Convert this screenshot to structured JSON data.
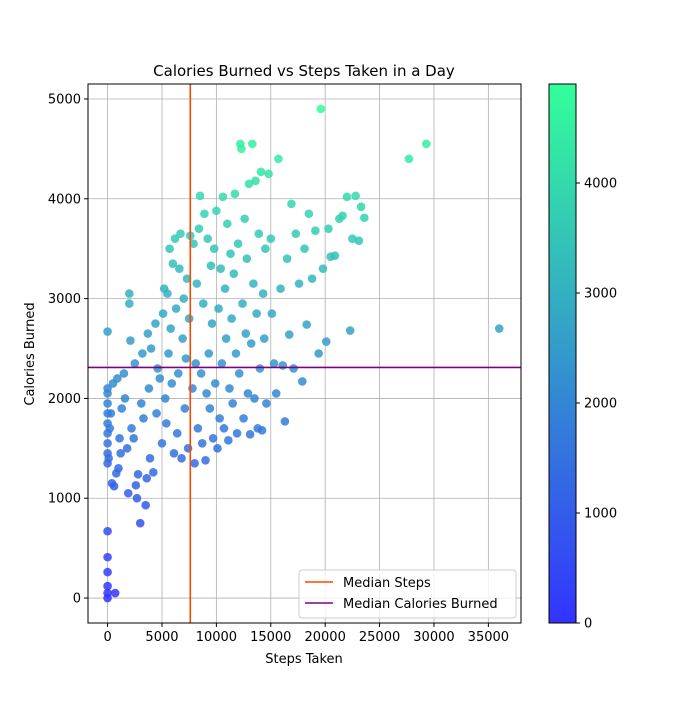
{
  "chart_data": {
    "type": "scatter",
    "title": "Calories Burned vs Steps Taken in a Day",
    "xlabel": "Steps Taken",
    "ylabel": "Calories Burned",
    "xlim": [
      -1800,
      38000
    ],
    "ylim": [
      -250,
      5150
    ],
    "xticks": [
      0,
      5000,
      10000,
      15000,
      20000,
      25000,
      30000,
      35000
    ],
    "xtick_labels": [
      "0",
      "5000",
      "10000",
      "15000",
      "20000",
      "25000",
      "30000",
      "35000"
    ],
    "yticks": [
      0,
      1000,
      2000,
      3000,
      4000,
      5000
    ],
    "ytick_labels": [
      "0",
      "1000",
      "2000",
      "3000",
      "4000",
      "5000"
    ],
    "grid": true,
    "colormap": "winter",
    "colormap_stops": [
      "#3333ff",
      "#33ff99"
    ],
    "color_range": [
      0,
      4900
    ],
    "colorbar_ticks": [
      0,
      1000,
      2000,
      3000,
      4000
    ],
    "colorbar_tick_labels": [
      "0",
      "1000",
      "2000",
      "3000",
      "4000"
    ],
    "reference_lines": [
      {
        "name": "Median Steps",
        "orientation": "vertical",
        "value": 7600,
        "color": "#ff4500"
      },
      {
        "name": "Median Calories Burned",
        "orientation": "horizontal",
        "value": 2310,
        "color": "#800080"
      }
    ],
    "legend": {
      "placement": "lower-right",
      "entries": [
        "Median Steps",
        "Median Calories Burned"
      ]
    },
    "points": [
      [
        0,
        0
      ],
      [
        0,
        50
      ],
      [
        0,
        120
      ],
      [
        0,
        260
      ],
      [
        0,
        410
      ],
      [
        0,
        670
      ],
      [
        0,
        1350
      ],
      [
        0,
        1450
      ],
      [
        0,
        1550
      ],
      [
        0,
        1650
      ],
      [
        0,
        1750
      ],
      [
        0,
        1850
      ],
      [
        0,
        1950
      ],
      [
        0,
        2050
      ],
      [
        0,
        2100
      ],
      [
        0,
        2670
      ],
      [
        100,
        1400
      ],
      [
        200,
        1700
      ],
      [
        300,
        1850
      ],
      [
        400,
        1150
      ],
      [
        500,
        2150
      ],
      [
        600,
        1120
      ],
      [
        700,
        50
      ],
      [
        800,
        1250
      ],
      [
        900,
        2200
      ],
      [
        1000,
        1300
      ],
      [
        1100,
        1600
      ],
      [
        1200,
        1450
      ],
      [
        1300,
        1900
      ],
      [
        1500,
        2250
      ],
      [
        1600,
        2000
      ],
      [
        1800,
        1500
      ],
      [
        1900,
        1050
      ],
      [
        2000,
        2950
      ],
      [
        2000,
        3050
      ],
      [
        2100,
        2580
      ],
      [
        2200,
        1700
      ],
      [
        2400,
        1600
      ],
      [
        2500,
        2350
      ],
      [
        2600,
        1130
      ],
      [
        2700,
        1000
      ],
      [
        2800,
        1240
      ],
      [
        3000,
        750
      ],
      [
        3100,
        1950
      ],
      [
        3200,
        2450
      ],
      [
        3300,
        1800
      ],
      [
        3500,
        930
      ],
      [
        3600,
        1200
      ],
      [
        3700,
        2650
      ],
      [
        3800,
        2100
      ],
      [
        3900,
        1400
      ],
      [
        4000,
        2500
      ],
      [
        4200,
        1260
      ],
      [
        4400,
        2750
      ],
      [
        4500,
        1850
      ],
      [
        4600,
        2300
      ],
      [
        4800,
        2200
      ],
      [
        5000,
        1550
      ],
      [
        5100,
        2850
      ],
      [
        5200,
        3100
      ],
      [
        5300,
        2000
      ],
      [
        5400,
        1750
      ],
      [
        5500,
        3050
      ],
      [
        5600,
        2450
      ],
      [
        5700,
        3500
      ],
      [
        5800,
        2700
      ],
      [
        5900,
        2150
      ],
      [
        6000,
        3350
      ],
      [
        6100,
        1450
      ],
      [
        6200,
        3600
      ],
      [
        6300,
        2900
      ],
      [
        6400,
        1650
      ],
      [
        6500,
        2250
      ],
      [
        6600,
        3300
      ],
      [
        6700,
        3650
      ],
      [
        6800,
        1400
      ],
      [
        6900,
        2600
      ],
      [
        7000,
        3000
      ],
      [
        7100,
        1900
      ],
      [
        7200,
        2400
      ],
      [
        7300,
        3200
      ],
      [
        7400,
        1500
      ],
      [
        7500,
        2800
      ],
      [
        7600,
        3630
      ],
      [
        7800,
        2100
      ],
      [
        7900,
        3550
      ],
      [
        8000,
        1350
      ],
      [
        8100,
        2350
      ],
      [
        8200,
        3150
      ],
      [
        8300,
        1700
      ],
      [
        8400,
        3700
      ],
      [
        8500,
        4030
      ],
      [
        8600,
        2250
      ],
      [
        8700,
        1550
      ],
      [
        8800,
        2950
      ],
      [
        8900,
        3850
      ],
      [
        9000,
        1380
      ],
      [
        9100,
        2050
      ],
      [
        9200,
        3600
      ],
      [
        9300,
        2450
      ],
      [
        9400,
        1900
      ],
      [
        9500,
        3330
      ],
      [
        9600,
        2750
      ],
      [
        9700,
        1600
      ],
      [
        9800,
        3500
      ],
      [
        9900,
        2150
      ],
      [
        10000,
        3880
      ],
      [
        10100,
        1500
      ],
      [
        10200,
        2900
      ],
      [
        10300,
        1800
      ],
      [
        10400,
        3300
      ],
      [
        10500,
        2350
      ],
      [
        10600,
        4020
      ],
      [
        10700,
        1700
      ],
      [
        10800,
        3100
      ],
      [
        10900,
        2600
      ],
      [
        11000,
        3750
      ],
      [
        11100,
        1580
      ],
      [
        11200,
        2100
      ],
      [
        11300,
        3450
      ],
      [
        11400,
        2800
      ],
      [
        11500,
        1950
      ],
      [
        11600,
        3250
      ],
      [
        11700,
        4050
      ],
      [
        11800,
        2450
      ],
      [
        11900,
        1650
      ],
      [
        12000,
        3550
      ],
      [
        12100,
        2250
      ],
      [
        12200,
        4550
      ],
      [
        12300,
        4500
      ],
      [
        12400,
        2950
      ],
      [
        12500,
        1800
      ],
      [
        12600,
        3800
      ],
      [
        12700,
        2650
      ],
      [
        12800,
        3400
      ],
      [
        12900,
        2050
      ],
      [
        13000,
        4150
      ],
      [
        13100,
        1640
      ],
      [
        13200,
        2550
      ],
      [
        13300,
        4550
      ],
      [
        13400,
        3150
      ],
      [
        13500,
        2000
      ],
      [
        13600,
        4180
      ],
      [
        13700,
        2850
      ],
      [
        13800,
        1700
      ],
      [
        13900,
        3650
      ],
      [
        14000,
        2300
      ],
      [
        14100,
        4270
      ],
      [
        14200,
        1680
      ],
      [
        14300,
        3050
      ],
      [
        14400,
        2600
      ],
      [
        14500,
        3500
      ],
      [
        14600,
        1950
      ],
      [
        14800,
        4250
      ],
      [
        15000,
        3600
      ],
      [
        15100,
        2850
      ],
      [
        15300,
        2350
      ],
      [
        15500,
        2050
      ],
      [
        15700,
        4400
      ],
      [
        15900,
        3100
      ],
      [
        16100,
        2330
      ],
      [
        16300,
        1770
      ],
      [
        16500,
        3400
      ],
      [
        16700,
        2640
      ],
      [
        16900,
        3950
      ],
      [
        17100,
        2300
      ],
      [
        17300,
        3650
      ],
      [
        17600,
        3150
      ],
      [
        17900,
        2170
      ],
      [
        18100,
        3500
      ],
      [
        18300,
        2740
      ],
      [
        18500,
        3850
      ],
      [
        18800,
        3200
      ],
      [
        19100,
        3680
      ],
      [
        19400,
        2450
      ],
      [
        19600,
        4900
      ],
      [
        19800,
        3300
      ],
      [
        20100,
        2570
      ],
      [
        20300,
        3700
      ],
      [
        20500,
        3420
      ],
      [
        20900,
        3430
      ],
      [
        21300,
        3800
      ],
      [
        21600,
        3830
      ],
      [
        22000,
        4020
      ],
      [
        22300,
        2680
      ],
      [
        22500,
        3600
      ],
      [
        22800,
        4030
      ],
      [
        23100,
        3580
      ],
      [
        23300,
        3920
      ],
      [
        23600,
        3810
      ],
      [
        27700,
        4400
      ],
      [
        29300,
        4550
      ],
      [
        36000,
        2700
      ]
    ]
  }
}
